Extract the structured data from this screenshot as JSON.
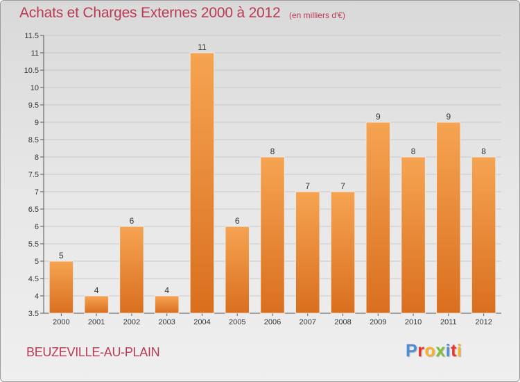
{
  "header": {
    "title": "Achats et Charges Externes 2000 à 2012",
    "unit": "(en milliers d'€)"
  },
  "footer": {
    "commune": "BEUZEVILLE-AU-PLAIN",
    "logo_letters": [
      "P",
      "r",
      "o",
      "x",
      "i",
      "t",
      "i"
    ]
  },
  "colors": {
    "title": "#ba3a55",
    "bar_top": "#f6a452",
    "bar_bottom": "#d96f1e",
    "gridline": "#c8c8c8",
    "logo": [
      "#4a8fd4",
      "#e8352e",
      "#f7b32b",
      "#7cbf3a",
      "#4a8fd4",
      "#e8352e",
      "#f7b32b"
    ]
  },
  "chart_data": {
    "type": "bar",
    "title": "Achats et Charges Externes 2000 à 2012",
    "xlabel": "",
    "ylabel": "",
    "ylim": [
      3.5,
      11.5
    ],
    "yticks": [
      "3.5",
      "4",
      "4.5",
      "5",
      "5.5",
      "6",
      "6.5",
      "7",
      "7.5",
      "8",
      "8.5",
      "9",
      "9.5",
      "10",
      "10.5",
      "11",
      "11.5"
    ],
    "grid": true,
    "categories": [
      "2000",
      "2001",
      "2002",
      "2003",
      "2004",
      "2005",
      "2006",
      "2007",
      "2008",
      "2009",
      "2010",
      "2011",
      "2012"
    ],
    "values": [
      5,
      4,
      6,
      4,
      11,
      6,
      8,
      7,
      7,
      9,
      8,
      9,
      8
    ]
  }
}
